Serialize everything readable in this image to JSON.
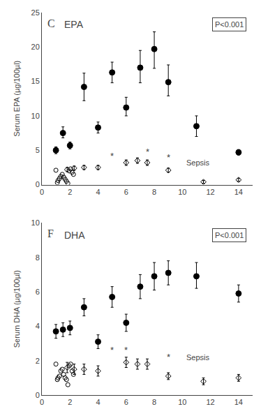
{
  "chart_data": [
    {
      "type": "scatter",
      "title": "EPA",
      "ylabel": "Serum EPA (µg/100µl)",
      "xlim": [
        0,
        15
      ],
      "xticks": [
        0,
        2,
        4,
        6,
        8,
        10,
        12,
        14
      ],
      "ylim": [
        0,
        25
      ],
      "yticks": [
        0,
        5,
        10,
        15,
        20,
        25
      ],
      "grid": false,
      "series": [
        {
          "marker": "circle-open",
          "color": "black",
          "x": [
            1.0,
            1.1,
            1.15,
            1.25,
            1.35,
            1.45,
            1.55,
            1.65,
            1.75,
            1.85,
            1.95,
            2.05,
            2.15,
            2.25
          ],
          "values": [
            2.1,
            0.3,
            0.6,
            0.9,
            1.2,
            1.5,
            1.1,
            0.8,
            0.5,
            0.2,
            2.0,
            2.3,
            1.8,
            1.5
          ]
        },
        {
          "marker": "circle",
          "color": "black",
          "x": [
            1.0,
            1.5,
            2.0,
            3.0,
            4.0,
            5.0,
            6.0,
            7.0,
            8.0,
            9.0,
            11.0,
            14.0
          ],
          "values": [
            5.0,
            7.5,
            5.7,
            14.2,
            8.3,
            16.3,
            11.2,
            17.0,
            19.7,
            14.9,
            8.5,
            4.7
          ],
          "error_lo": [
            0.5,
            0.7,
            0.5,
            2.0,
            0.8,
            1.5,
            1.2,
            2.2,
            2.8,
            2.0,
            1.5,
            0.4
          ],
          "error_hi": [
            0.5,
            0.9,
            0.5,
            2.0,
            0.8,
            1.5,
            1.5,
            2.5,
            2.5,
            2.5,
            1.5,
            0.4
          ]
        },
        {
          "marker": "diamond-open",
          "color": "black",
          "x": [
            1.8,
            2.3,
            3.0,
            4.0,
            6.0,
            6.8,
            7.5,
            9.0,
            11.5,
            14.0
          ],
          "values": [
            2.2,
            2.4,
            2.5,
            2.5,
            3.2,
            3.5,
            3.2,
            2.1,
            0.4,
            0.7
          ],
          "error_lo": [
            0.3,
            0.3,
            0.3,
            0.3,
            0.4,
            0.4,
            0.4,
            0.3,
            0.2,
            0.2
          ],
          "error_hi": [
            0.3,
            0.3,
            0.3,
            0.3,
            0.4,
            0.4,
            0.4,
            0.3,
            0.2,
            0.2
          ]
        }
      ],
      "annotations": [
        {
          "text": "C",
          "position": "top left"
        },
        {
          "text": "P<0.001",
          "position": "top right"
        },
        {
          "text": "*",
          "x": 5.0,
          "y": 4.2
        },
        {
          "text": "*",
          "x": 7.5,
          "y": 4.8
        },
        {
          "text": "*",
          "x": 9.0,
          "y": 4.0
        },
        {
          "text": "Sepsis",
          "x": 10.2,
          "y": 3.2
        }
      ]
    },
    {
      "type": "scatter",
      "title": "DHA",
      "ylabel": "Serum DHA (µg/100µl)",
      "xlim": [
        0,
        15
      ],
      "xticks": [
        0,
        2,
        4,
        6,
        8,
        10,
        12,
        14
      ],
      "ylim": [
        0,
        10
      ],
      "yticks": [
        0,
        2,
        4,
        6,
        8,
        10
      ],
      "grid": false,
      "series": [
        {
          "marker": "circle-open",
          "color": "black",
          "x": [
            1.0,
            1.1,
            1.15,
            1.25,
            1.35,
            1.45,
            1.55,
            1.65,
            1.75,
            1.85,
            1.95,
            2.05,
            2.15,
            2.25
          ],
          "values": [
            1.8,
            0.9,
            1.0,
            1.1,
            1.4,
            1.5,
            1.2,
            1.0,
            0.9,
            0.6,
            1.7,
            1.8,
            1.4,
            1.2
          ]
        },
        {
          "marker": "circle",
          "color": "black",
          "x": [
            1.0,
            1.5,
            2.0,
            3.0,
            4.0,
            5.0,
            6.0,
            7.0,
            8.0,
            9.0,
            11.0,
            14.0
          ],
          "values": [
            3.7,
            3.8,
            3.9,
            5.1,
            3.1,
            5.7,
            4.2,
            6.3,
            6.9,
            7.1,
            6.9,
            5.9
          ],
          "error_lo": [
            0.4,
            0.4,
            0.4,
            0.5,
            0.4,
            0.6,
            0.5,
            0.7,
            0.8,
            0.7,
            0.7,
            0.5
          ],
          "error_hi": [
            0.4,
            0.4,
            0.4,
            0.5,
            0.4,
            0.6,
            0.5,
            0.7,
            0.8,
            0.7,
            0.8,
            0.5
          ]
        },
        {
          "marker": "diamond-open",
          "color": "black",
          "x": [
            1.8,
            2.3,
            3.0,
            4.0,
            6.0,
            6.8,
            7.5,
            9.0,
            11.5,
            14.0
          ],
          "values": [
            1.6,
            1.5,
            1.5,
            1.4,
            1.9,
            1.8,
            1.8,
            1.1,
            0.8,
            1.0
          ],
          "error_lo": [
            0.3,
            0.3,
            0.3,
            0.3,
            0.3,
            0.3,
            0.3,
            0.2,
            0.2,
            0.2
          ],
          "error_hi": [
            0.3,
            0.3,
            0.3,
            0.3,
            0.3,
            0.3,
            0.3,
            0.2,
            0.2,
            0.2
          ]
        }
      ],
      "annotations": [
        {
          "text": "F",
          "position": "top left"
        },
        {
          "text": "P<0.001",
          "position": "top right"
        },
        {
          "text": "*",
          "x": 5.0,
          "y": 2.6
        },
        {
          "text": "*",
          "x": 6.0,
          "y": 2.6
        },
        {
          "text": "*",
          "x": 9.0,
          "y": 2.2
        },
        {
          "text": "Sepsis",
          "x": 10.2,
          "y": 2.2
        }
      ]
    }
  ]
}
